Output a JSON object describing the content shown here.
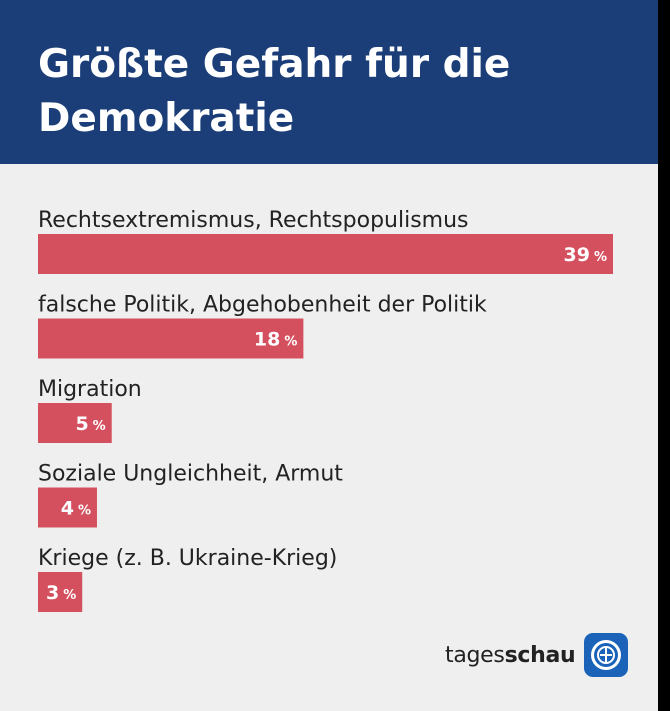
{
  "header": {
    "title": "Größte Gefahr für die Demokratie"
  },
  "chart_data": {
    "type": "bar",
    "orientation": "horizontal",
    "title": "Größte Gefahr für die Demokratie",
    "categories": [
      "Rechtsextremismus, Rechtspopulismus",
      "falsche Politik, Abgehobenheit der Politik",
      "Migration",
      "Soziale Ungleichheit, Armut",
      "Kriege (z. B. Ukraine-Krieg)"
    ],
    "values": [
      39,
      18,
      5,
      4,
      3
    ],
    "value_suffix": "%",
    "bar_color": "#d5505f",
    "grid": false,
    "legend": "none"
  },
  "branding": {
    "logo_light": "tages",
    "logo_bold": "schau",
    "logo_icon": "tagesschau-globe-icon"
  },
  "colors": {
    "header_bg": "#1b3e78",
    "background": "#efefef",
    "bar": "#d5505f",
    "text": "#222222",
    "logo_blue": "#1a63b8"
  }
}
